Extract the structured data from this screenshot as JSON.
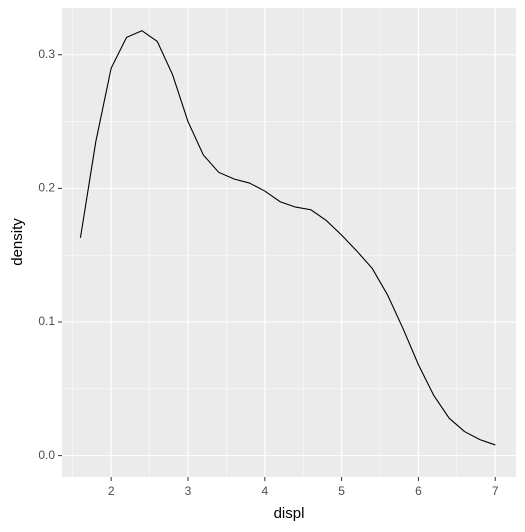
{
  "chart_data": {
    "type": "line",
    "x_label": "displ",
    "y_label": "density",
    "x": [
      1.6,
      1.8,
      2.0,
      2.2,
      2.4,
      2.6,
      2.8,
      3.0,
      3.2,
      3.4,
      3.6,
      3.8,
      4.0,
      4.2,
      4.4,
      4.6,
      4.8,
      5.0,
      5.2,
      5.4,
      5.6,
      5.8,
      6.0,
      6.2,
      6.4,
      6.6,
      6.8,
      7.0
    ],
    "series": [
      {
        "color": "#000000",
        "values": [
          0.163,
          0.235,
          0.29,
          0.313,
          0.318,
          0.31,
          0.285,
          0.25,
          0.225,
          0.212,
          0.207,
          0.204,
          0.198,
          0.19,
          0.186,
          0.184,
          0.176,
          0.165,
          0.153,
          0.14,
          0.12,
          0.095,
          0.068,
          0.045,
          0.028,
          0.018,
          0.012,
          0.008
        ]
      }
    ],
    "xlim": [
      1.36,
      7.27
    ],
    "ylim": [
      -0.016,
      0.335
    ],
    "xticks": [
      2,
      3,
      4,
      5,
      6,
      7
    ],
    "yticks": [
      {
        "value": 0,
        "label": "0.0"
      },
      0.1,
      0.2,
      0.3
    ],
    "grid": true,
    "panel_color": "#ebebeb"
  }
}
